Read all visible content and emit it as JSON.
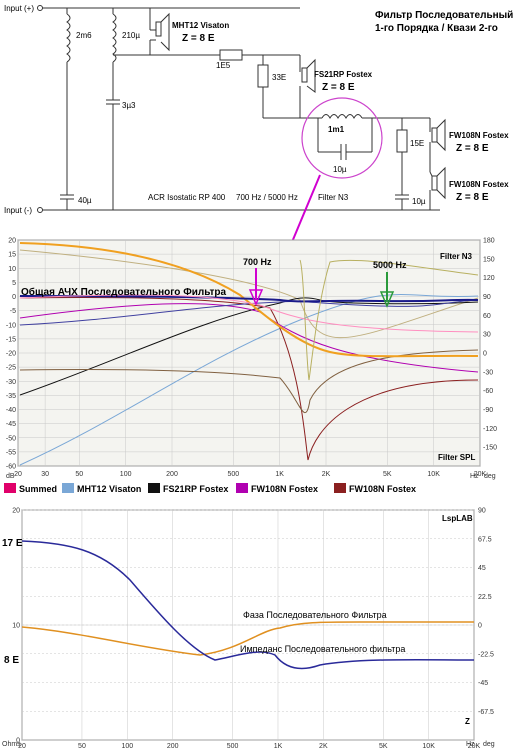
{
  "schematic": {
    "title_line1": "Фильтр Последовательный",
    "title_line2": "1-го Порядка / Квази 2-го",
    "input_plus": "Input (+)",
    "input_minus": "Input (-)",
    "l1": "2m6",
    "l2": "210µ",
    "c_small": "3µ3",
    "c_bottom": "40µ",
    "mht_name": "MHT12 Visaton",
    "mht_z": "Z = 8 E",
    "r_series": "1E5",
    "r_shunt": "33E",
    "fs_name": "FS21RP Fostex",
    "fs_z": "Z = 8 E",
    "trap_l": "1m1",
    "trap_c": "10µ",
    "r_15": "15E",
    "c_10": "10µ",
    "fw1_name": "FW108N Fostex",
    "fw1_z": "Z = 8 E",
    "fw2_name": "FW108N Fostex",
    "fw2_z": "Z = 8 E",
    "footer_acr": "ACR Isostatic RP 400",
    "footer_freq": "700 Hz / 5000 Hz",
    "footer_filter": "Filter N3"
  },
  "spl_chart": {
    "filter_label": "Filter N3",
    "spl_label": "Filter SPL",
    "summary_label": "Общая АЧХ Последовательного Фильтра",
    "marker_700": "700 Hz",
    "marker_5000": "5000 Hz",
    "y_left_ticks": [
      "20",
      "15",
      "10",
      "5",
      "0",
      "-5",
      "-10",
      "-15",
      "-20",
      "-25",
      "-30",
      "-35",
      "-40",
      "-45",
      "-50",
      "-55",
      "-60"
    ],
    "y_right_ticks": [
      "180",
      "150",
      "120",
      "90",
      "60",
      "30",
      "0",
      "-30",
      "-60",
      "-90",
      "-120",
      "-150"
    ],
    "x_ticks": [
      "20",
      "30",
      "50",
      "100",
      "200",
      "500",
      "1K",
      "2K",
      "5K",
      "10K",
      "20K"
    ],
    "y_unit": "dB",
    "x_unit": "Hz",
    "deg_unit": "deg"
  },
  "legend": [
    {
      "label": "Summed",
      "color": "#e0006a"
    },
    {
      "label": "MHT12 Visaton",
      "color": "#7aa7d6"
    },
    {
      "label": "FS21RP Fostex",
      "color": "#111111"
    },
    {
      "label": "FW108N Fostex",
      "color": "#b000b0"
    },
    {
      "label": "FW108N Fostex",
      "color": "#8b2020"
    }
  ],
  "imp_chart": {
    "brand": "LspLAB",
    "label_phase": "Фаза Последовательного Фильтра",
    "label_imp": "Импеданс Последовательного фильтра",
    "label_17": "17 E",
    "label_8": "8 E",
    "y_left_ticks": [
      "20",
      "10",
      "0"
    ],
    "y_right_ticks": [
      "90",
      "67.5",
      "45",
      "22.5",
      "0",
      "-22.5",
      "-45",
      "-67.5"
    ],
    "x_ticks": [
      "20",
      "50",
      "100",
      "200",
      "500",
      "1K",
      "2K",
      "5K",
      "10K",
      "20K"
    ],
    "unit_left": "Ohms",
    "unit_x": "Hz",
    "unit_right": "deg",
    "z_label": "Z"
  }
}
